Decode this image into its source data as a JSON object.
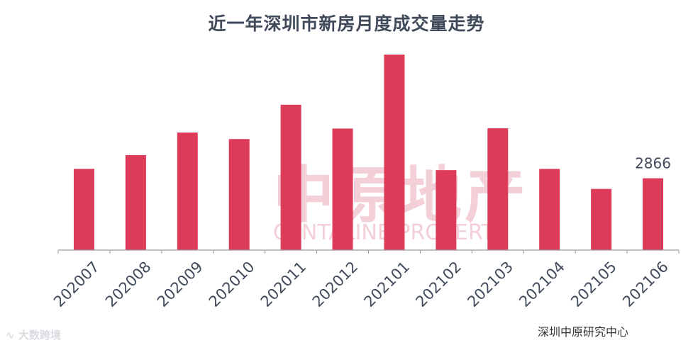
{
  "colors": {
    "bar": "#dd3b5a",
    "axis": "#9a9a9a",
    "text": "#404a5a",
    "watermark": "#f3cfd7"
  },
  "brand_icon": "sound-wave-icon",
  "chart_data": {
    "type": "bar",
    "title": "近一年深圳市新房月度成交量走势",
    "categories": [
      "202007",
      "202008",
      "202009",
      "202010",
      "202011",
      "202012",
      "202101",
      "202102",
      "202103",
      "202104",
      "202105",
      "202106"
    ],
    "values": [
      3240,
      3790,
      4690,
      4430,
      5800,
      4850,
      7800,
      3190,
      4860,
      3240,
      2440,
      2866
    ],
    "data_labels": [
      {
        "category": "202106",
        "text": "2866"
      }
    ],
    "ylim": [
      0,
      8000
    ],
    "grid": false,
    "xlabel": "",
    "ylabel": ""
  },
  "source_note": "深圳中原研究中心",
  "watermark": {
    "main": "中原地产",
    "sub": "CENTALINE PROPERTY"
  },
  "brand_logo_text": "大数跨境"
}
